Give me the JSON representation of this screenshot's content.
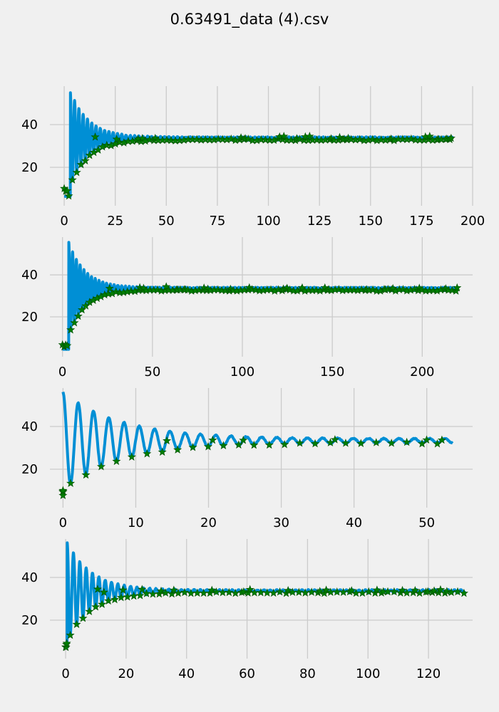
{
  "figure": {
    "title": "0.63491_data (4).csv",
    "colors": {
      "background": "#f0f0f0",
      "grid": "#cbcbcb",
      "line": "#008fd5",
      "marker": "#007f00",
      "marker_edge": "#004d00"
    }
  },
  "chart_data": [
    {
      "type": "line",
      "title": "",
      "xlabel": "",
      "ylabel": "",
      "xlim": [
        -7,
        200
      ],
      "ylim": [
        2,
        58
      ],
      "xticks": [
        0,
        25,
        50,
        75,
        100,
        125,
        150,
        175,
        200
      ],
      "yticks": [
        20,
        40
      ],
      "grid": true,
      "series": [
        {
          "kind": "line",
          "x_range": [
            0,
            190
          ],
          "period": 2.1,
          "start": 3.0,
          "peak": 55,
          "trough": 5,
          "center": 33.5,
          "decay": 9,
          "floor_amp": 0.6
        },
        {
          "kind": "markers",
          "marker": "star",
          "description": "local maxima",
          "x_range": [
            0,
            190
          ],
          "first_peak": 55
        }
      ]
    },
    {
      "type": "line",
      "title": "",
      "xlabel": "",
      "ylabel": "",
      "xlim": [
        -7,
        228
      ],
      "ylim": [
        1,
        58
      ],
      "xticks": [
        0,
        50,
        100,
        150,
        200
      ],
      "yticks": [
        20,
        40
      ],
      "grid": true,
      "series": [
        {
          "kind": "line",
          "x_range": [
            0,
            219
          ],
          "period": 2.1,
          "start": 3.5,
          "peak": 55,
          "trough": 3,
          "center": 33.3,
          "decay": 9,
          "floor_amp": 0.6
        },
        {
          "kind": "markers",
          "marker": "star",
          "description": "local maxima",
          "x_range": [
            0,
            219
          ],
          "first_peak": 55
        }
      ]
    },
    {
      "type": "line",
      "title": "",
      "xlabel": "",
      "ylabel": "",
      "xlim": [
        -1.8,
        56.3
      ],
      "ylim": [
        2,
        58
      ],
      "xticks": [
        0,
        10,
        20,
        30,
        40,
        50
      ],
      "yticks": [
        20,
        40
      ],
      "grid": true,
      "series": [
        {
          "kind": "line",
          "x_range": [
            0,
            53.5
          ],
          "period": 2.1,
          "start": 0,
          "peak": 55,
          "trough": 6,
          "center": 33.3,
          "decay": 8,
          "floor_amp": 1.0
        },
        {
          "kind": "markers",
          "marker": "star",
          "description": "local maxima",
          "x_range": [
            0,
            53.5
          ],
          "first_peak": 55
        }
      ]
    },
    {
      "type": "line",
      "title": "",
      "xlabel": "",
      "ylabel": "",
      "xlim": [
        -5.2,
        134.6
      ],
      "ylim": [
        2,
        58
      ],
      "xticks": [
        0,
        20,
        40,
        60,
        80,
        100,
        120
      ],
      "yticks": [
        20,
        40
      ],
      "grid": true,
      "series": [
        {
          "kind": "line",
          "x_range": [
            0,
            132
          ],
          "period": 2.1,
          "start": 0.5,
          "peak": 56,
          "trough": 6,
          "center": 33.5,
          "decay": 8,
          "floor_amp": 0.6
        },
        {
          "kind": "markers",
          "marker": "star",
          "description": "local maxima",
          "x_range": [
            0,
            132
          ],
          "first_peak": 56
        }
      ]
    }
  ]
}
